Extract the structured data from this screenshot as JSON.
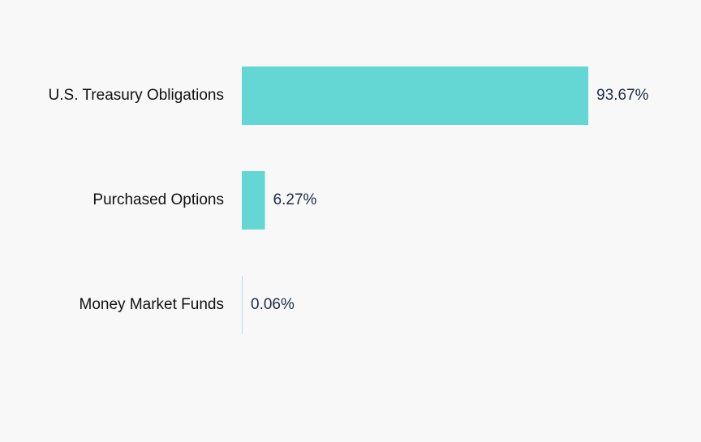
{
  "chart_data": {
    "type": "bar",
    "orientation": "horizontal",
    "categories": [
      "U.S. Treasury Obligations",
      "Purchased Options",
      "Money Market Funds"
    ],
    "values": [
      93.67,
      6.27,
      0.06
    ],
    "value_labels": [
      "93.67%",
      "6.27%",
      "0.06%"
    ],
    "color": "#64d6d4"
  }
}
